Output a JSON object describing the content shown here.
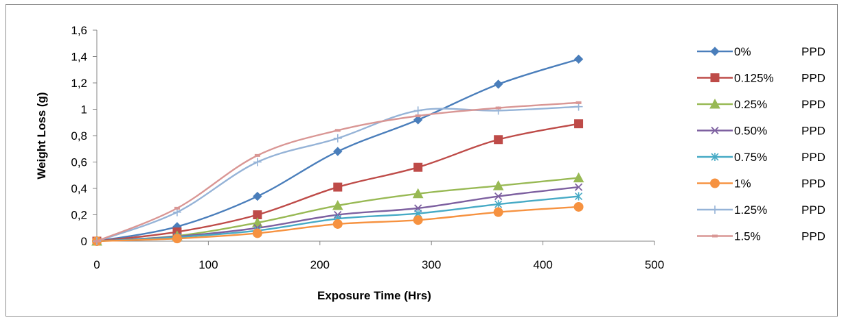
{
  "chart_data": {
    "type": "line",
    "xlabel": "Exposure Time (Hrs)",
    "ylabel": "Weight Loss (g)",
    "xlim": [
      0,
      500
    ],
    "ylim": [
      0,
      1.6
    ],
    "x_ticks": [
      "0",
      "100",
      "200",
      "300",
      "400",
      "500"
    ],
    "y_ticks": [
      "0",
      "0,2",
      "0,4",
      "0,6",
      "0,8",
      "1",
      "1,2",
      "1,4",
      "1,6"
    ],
    "grid": false,
    "legend_position": "right",
    "x": [
      0,
      72,
      144,
      216,
      288,
      360,
      432
    ],
    "series": [
      {
        "name": "0%",
        "unit": "PPD",
        "color": "#4a7ebb",
        "marker": "diamond",
        "values": [
          0,
          0.11,
          0.34,
          0.68,
          0.92,
          1.19,
          1.38
        ]
      },
      {
        "name": "0.125%",
        "unit": "PPD",
        "color": "#be4b48",
        "marker": "square",
        "values": [
          0,
          0.07,
          0.2,
          0.41,
          0.56,
          0.77,
          0.89
        ]
      },
      {
        "name": "0.25%",
        "unit": "PPD",
        "color": "#98b954",
        "marker": "triangle",
        "values": [
          0,
          0.04,
          0.14,
          0.27,
          0.36,
          0.42,
          0.48
        ]
      },
      {
        "name": "0.50%",
        "unit": "PPD",
        "color": "#7d60a0",
        "marker": "x",
        "values": [
          0,
          0.035,
          0.1,
          0.2,
          0.25,
          0.34,
          0.41
        ]
      },
      {
        "name": "0.75%",
        "unit": "PPD",
        "color": "#46aac5",
        "marker": "star",
        "values": [
          0,
          0.03,
          0.08,
          0.17,
          0.21,
          0.28,
          0.34
        ]
      },
      {
        "name": "1%",
        "unit": "PPD",
        "color": "#f69240",
        "marker": "circle",
        "values": [
          0,
          0.02,
          0.06,
          0.13,
          0.16,
          0.22,
          0.26
        ]
      },
      {
        "name": "1.25%",
        "unit": "PPD",
        "color": "#95b3d7",
        "marker": "plus",
        "values": [
          0,
          0.22,
          0.6,
          0.78,
          0.99,
          0.99,
          1.02
        ]
      },
      {
        "name": "1.5%",
        "unit": "PPD",
        "color": "#d99694",
        "marker": "dash",
        "values": [
          0,
          0.25,
          0.65,
          0.84,
          0.95,
          1.01,
          1.05
        ]
      }
    ]
  }
}
